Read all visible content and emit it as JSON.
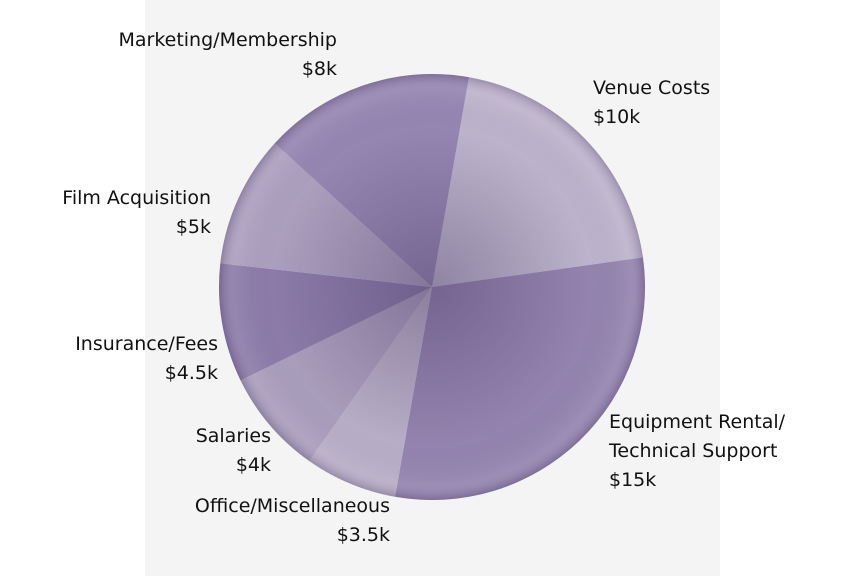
{
  "chart_data": {
    "type": "pie",
    "categories": [
      "Venue Costs",
      "Equipment Rental/\nTechnical Support",
      "Office/Miscellaneous",
      "Salaries",
      "Insurance/Fees",
      "Film Acquisition",
      "Marketing/Membership"
    ],
    "values": [
      10,
      15,
      3.5,
      4,
      4.5,
      5,
      8
    ],
    "value_labels": [
      "$10k",
      "$15k",
      "$3.5k",
      "$4k",
      "$4.5k",
      "$5k",
      "$8k"
    ],
    "colors": [
      "#bcb3cb",
      "#9383ae",
      "#b7adc6",
      "#a99dbc",
      "#8c7ba9",
      "#ab9fbe",
      "#9585b1"
    ]
  }
}
